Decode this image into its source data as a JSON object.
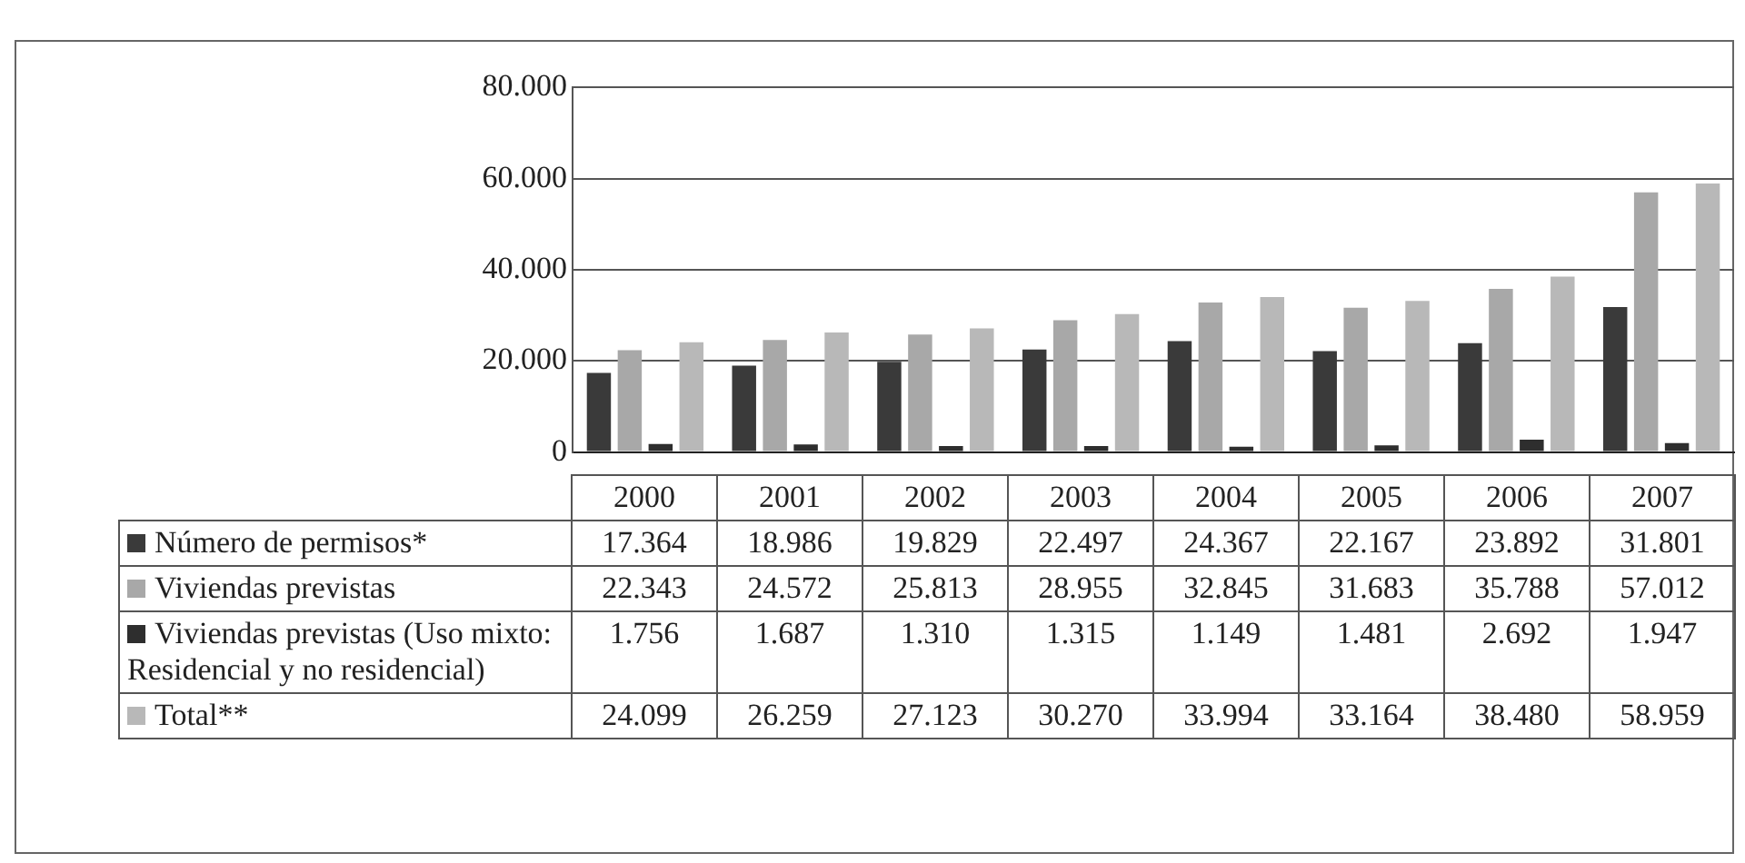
{
  "chart_data": {
    "type": "bar",
    "categories": [
      "2000",
      "2001",
      "2002",
      "2003",
      "2004",
      "2005",
      "2006",
      "2007"
    ],
    "series": [
      {
        "name": "Número de permisos*",
        "color": "#3a3a3a",
        "values": [
          17364,
          18986,
          19829,
          22497,
          24367,
          22167,
          23892,
          31801
        ],
        "value_labels": [
          "17.364",
          "18.986",
          "19.829",
          "22.497",
          "24.367",
          "22.167",
          "23.892",
          "31.801"
        ]
      },
      {
        "name": "Viviendas previstas",
        "color": "#a8a8a8",
        "values": [
          22343,
          24572,
          25813,
          28955,
          32845,
          31683,
          35788,
          57012
        ],
        "value_labels": [
          "22.343",
          "24.572",
          "25.813",
          "28.955",
          "32.845",
          "31.683",
          "35.788",
          "57.012"
        ]
      },
      {
        "name": "Viviendas previstas (Uso mixto: Residencial y no residencial)",
        "color": "#2e2e2e",
        "values": [
          1756,
          1687,
          1310,
          1315,
          1149,
          1481,
          2692,
          1947
        ],
        "value_labels": [
          "1.756",
          "1.687",
          "1.310",
          "1.315",
          "1.149",
          "1.481",
          "2.692",
          "1.947"
        ]
      },
      {
        "name": "Total**",
        "color": "#b8b8b8",
        "values": [
          24099,
          26259,
          27123,
          30270,
          33994,
          33164,
          38480,
          58959
        ],
        "value_labels": [
          "24.099",
          "26.259",
          "27.123",
          "30.270",
          "33.994",
          "33.164",
          "38.480",
          "58.959"
        ]
      }
    ],
    "ylim": [
      0,
      80000
    ],
    "yticks": [
      {
        "value": 0,
        "label": "0"
      },
      {
        "value": 20000,
        "label": "20.000"
      },
      {
        "value": 40000,
        "label": "40.000"
      },
      {
        "value": 60000,
        "label": "60.000"
      },
      {
        "value": 80000,
        "label": "80.000"
      }
    ],
    "grid": "y",
    "legend": "bottom"
  }
}
